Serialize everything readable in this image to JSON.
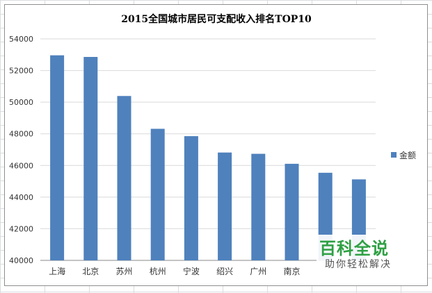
{
  "chart_data": {
    "type": "bar",
    "title": "2015全国城市居民可支配收入排名TOP10",
    "categories": [
      "上海",
      "北京",
      "苏州",
      "杭州",
      "宁波",
      "绍兴",
      "广州",
      "南京",
      "",
      ""
    ],
    "series": [
      {
        "name": "金额",
        "color": "#4f81bd",
        "values": [
          52962,
          52859,
          50390,
          48316,
          47852,
          46817,
          46735,
          46104,
          45537,
          45120
        ]
      }
    ],
    "ylim": [
      40000,
      54000
    ],
    "yticks": [
      40000,
      42000,
      44000,
      46000,
      48000,
      50000,
      52000,
      54000
    ],
    "grid": true,
    "legend": "right"
  },
  "watermark": {
    "title": "百科全说",
    "subtitle": "助你轻松解决"
  }
}
